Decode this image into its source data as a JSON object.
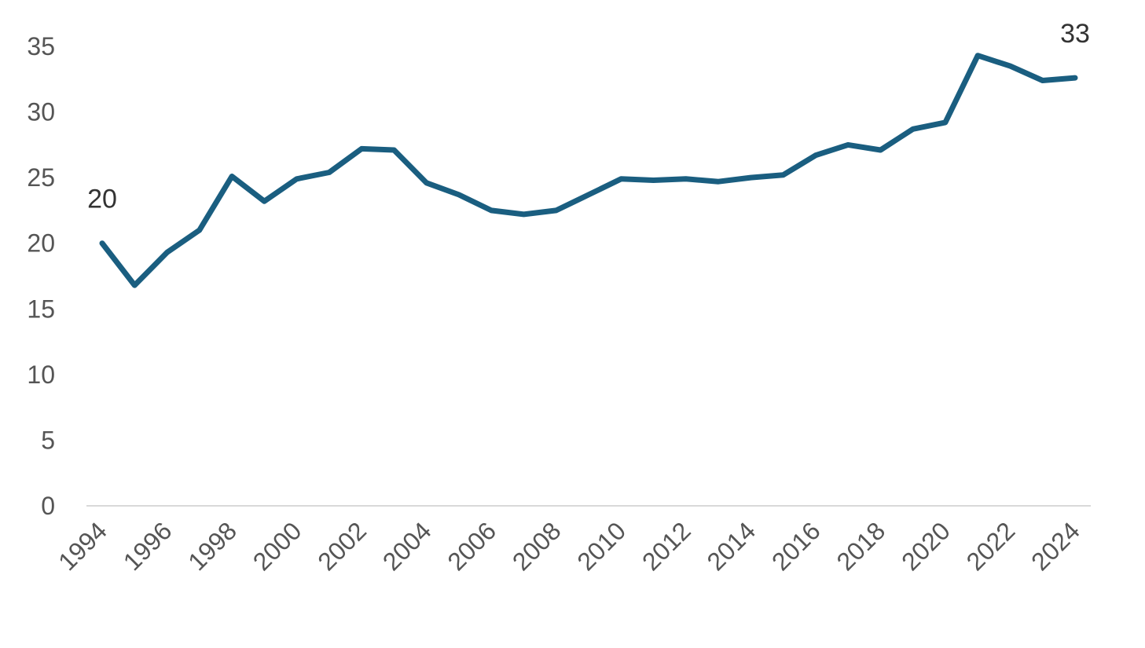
{
  "chart_data": {
    "type": "line",
    "title": "",
    "xlabel": "",
    "ylabel": "",
    "x": [
      1994,
      1995,
      1996,
      1997,
      1998,
      1999,
      2000,
      2001,
      2002,
      2003,
      2004,
      2005,
      2006,
      2007,
      2008,
      2009,
      2010,
      2011,
      2012,
      2013,
      2014,
      2015,
      2016,
      2017,
      2018,
      2019,
      2020,
      2021,
      2022,
      2023,
      2024
    ],
    "series": [
      {
        "name": "",
        "color": "#1a5e80",
        "values": [
          20.0,
          16.8,
          19.3,
          21.0,
          25.1,
          23.2,
          24.9,
          25.4,
          27.2,
          27.1,
          24.6,
          23.7,
          22.5,
          22.2,
          22.5,
          23.7,
          24.9,
          24.8,
          24.9,
          24.7,
          25.0,
          25.2,
          26.7,
          27.5,
          27.1,
          28.7,
          29.2,
          34.3,
          33.5,
          32.4,
          32.6
        ]
      }
    ],
    "ylim": [
      0,
      35
    ],
    "yticks": [
      0,
      5,
      10,
      15,
      20,
      25,
      30,
      35
    ],
    "xticks": [
      1994,
      1996,
      1998,
      2000,
      2002,
      2004,
      2006,
      2008,
      2010,
      2012,
      2014,
      2016,
      2018,
      2020,
      2022,
      2024
    ],
    "xtick_rotation_deg": -45,
    "grid": false,
    "legend": "none",
    "data_labels": [
      {
        "x": 1994,
        "text": "20"
      },
      {
        "x": 2024,
        "text": "33"
      }
    ]
  }
}
